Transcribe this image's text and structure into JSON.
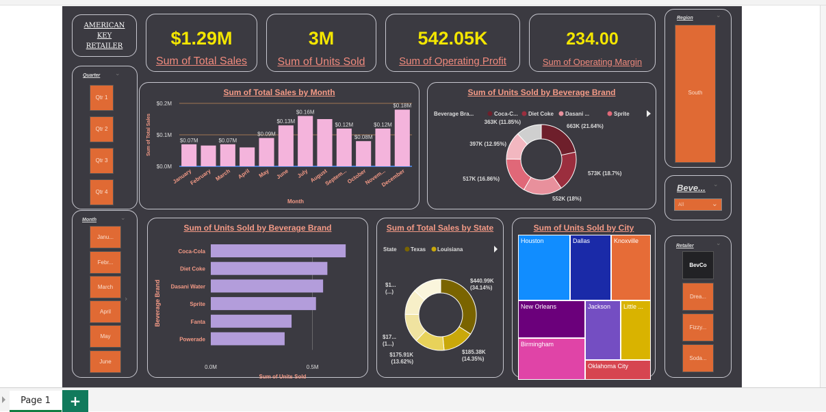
{
  "app": {
    "page_tab": "Page 1",
    "add_tab": "+"
  },
  "logo": {
    "line1": "AMERICAN",
    "line2": "KEY",
    "line3": "RETAILER"
  },
  "kpis": [
    {
      "value": "$1.29M",
      "label": "Sum of Total Sales"
    },
    {
      "value": "3M",
      "label": "Sum of Units Sold"
    },
    {
      "value": "542.05K",
      "label": "Sum of Operating Profit"
    },
    {
      "value": "234.00",
      "label": "Sum of Operating Margin"
    }
  ],
  "quarter_slicer": {
    "header": "Quarter",
    "items": [
      "Qtr 1",
      "Qtr 2",
      "Qtr 3",
      "Qtr 4"
    ]
  },
  "month_slicer": {
    "header": "Month",
    "items": [
      "Janu...",
      "Febr...",
      "March",
      "April",
      "May",
      "June"
    ]
  },
  "region_slicer": {
    "header": "Region",
    "value": "South"
  },
  "beverage_slicer": {
    "header": "Beve...",
    "value": "All"
  },
  "retailer_slicer": {
    "header": "Retailer",
    "items": [
      "BevCo",
      "Drea...",
      "Fizzy...",
      "Soda..."
    ]
  },
  "colors": {
    "accent": "#e06a34",
    "bg": "#3b3a41",
    "kpi": "#f3e600",
    "title": "#f49a86",
    "bar_pink": "#f4b4dc",
    "bar_purple": "#b39ddb"
  },
  "chart_data": [
    {
      "type": "bar",
      "title": "Sum of Total Sales by Month",
      "xlabel": "Month",
      "ylabel": "Sum of Total Sales",
      "yticks": [
        "$0.0M",
        "$0.1M",
        "$0.2M"
      ],
      "ylim": [
        0,
        0.2
      ],
      "categories": [
        "January",
        "February",
        "March",
        "April",
        "May",
        "June",
        "July",
        "August",
        "Septem...",
        "October",
        "Novem...",
        "December"
      ],
      "values": [
        0.07,
        0.066,
        0.07,
        0.06,
        0.09,
        0.13,
        0.16,
        0.15,
        0.12,
        0.08,
        0.12,
        0.18
      ],
      "labels": [
        "$0.07M",
        "",
        "$0.07M",
        "",
        "$0.09M",
        "$0.13M",
        "$0.16M",
        "",
        "$0.12M",
        "$0.08M",
        "$0.12M",
        "$0.18M"
      ]
    },
    {
      "type": "pie",
      "title": "Sum of Units Sold by Beverage Brand",
      "legend_title": "Beverage Bra...",
      "legend": [
        "Coca-C...",
        "Diet Coke",
        "Dasani ...",
        "Sprite"
      ],
      "values": [
        663,
        573,
        552,
        517,
        397,
        363
      ],
      "labels": [
        "663K (21.64%)",
        "573K (18.7%)",
        "552K (18%)",
        "517K (16.86%)",
        "397K (12.95%)",
        "363K (11.85%)"
      ],
      "colors": [
        "#6e1f2b",
        "#9b2e3e",
        "#e8909c",
        "#e06878",
        "#f2b7c0",
        "#cfcfcf"
      ]
    },
    {
      "type": "bar",
      "orientation": "horizontal",
      "title": "Sum of Units Sold by Beverage Brand",
      "xlabel": "Sum of Units Sold",
      "ylabel": "Beverage Brand",
      "xticks": [
        "0.0M",
        "0.5M"
      ],
      "xlim": [
        0,
        0.75
      ],
      "categories": [
        "Coca-Cola",
        "Diet Coke",
        "Dasani Water",
        "Sprite",
        "Fanta",
        "Powerade"
      ],
      "values": [
        0.663,
        0.573,
        0.552,
        0.517,
        0.397,
        0.363
      ]
    },
    {
      "type": "pie",
      "title": "Sum of Total Sales by State",
      "legend_title": "State",
      "legend": [
        "Texas",
        "Louisiana"
      ],
      "values": [
        440.99,
        185.38,
        175.91,
        170,
        150,
        170
      ],
      "labels": [
        "$440.99K (34.14%)",
        "$185.38K (14.35%)",
        "$175.91K (13.62%)",
        "$17... (1...)",
        "",
        "$1... (...)"
      ],
      "colors": [
        "#7a6400",
        "#c9a80a",
        "#e8d25a",
        "#f0e3a0",
        "#f7efc8",
        "#faf5dc"
      ]
    },
    {
      "type": "treemap",
      "title": "Sum of Units Sold by City",
      "categories": [
        "Houston",
        "Dallas",
        "Knoxville",
        "New Orleans",
        "Jackson",
        "Little ...",
        "Birmingham",
        "Oklahoma City"
      ]
    }
  ]
}
